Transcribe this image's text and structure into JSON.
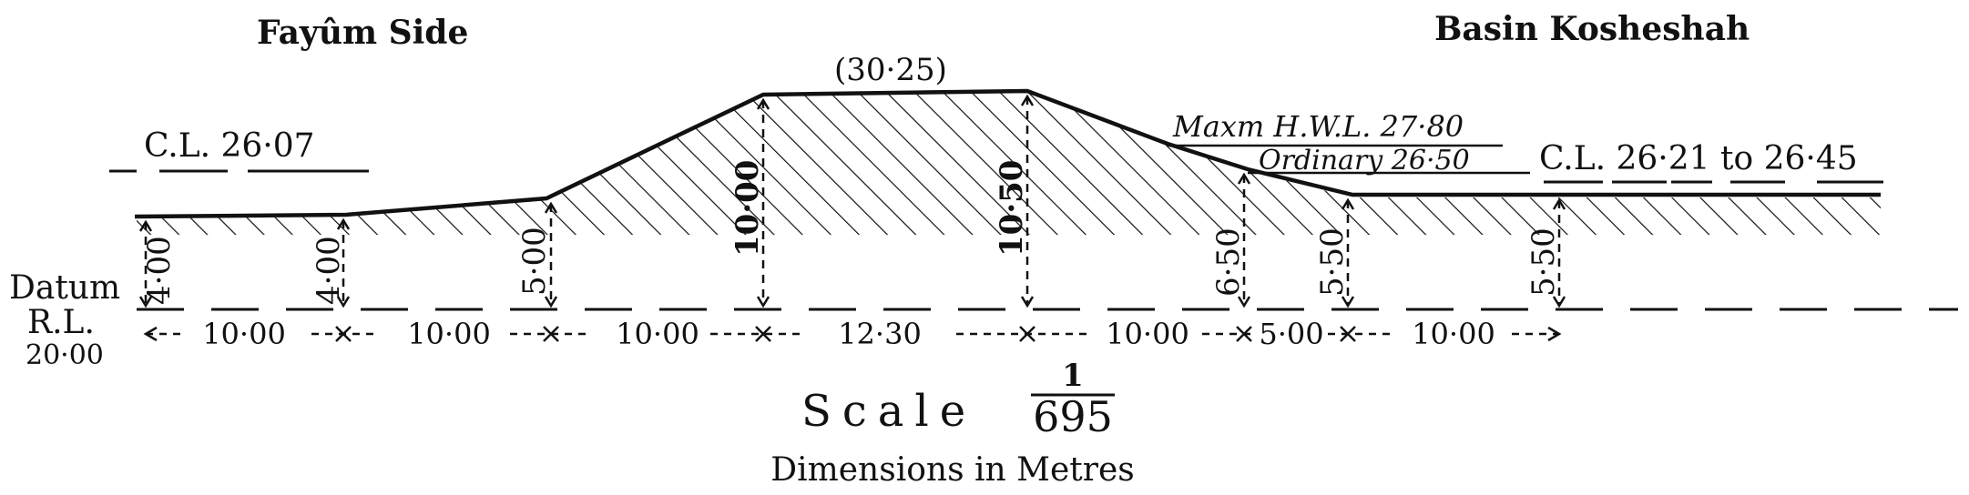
{
  "headings": {
    "left": "Fayûm Side",
    "right": "Basin Kosheshah"
  },
  "levels": {
    "crest": "(30·25)",
    "cl_left": "C.L. 26·07",
    "max_hwl": "Maxm H.W.L. 27·80",
    "ordinary": "Ordinary 26·50",
    "cl_right": "C.L. 26·21 to 26·45"
  },
  "datum": {
    "line1": "Datum",
    "line2": "R.L.",
    "line3": "20·00"
  },
  "heights": [
    "4·00",
    "4·00",
    "5·00",
    "10·00",
    "10·50",
    "6·50",
    "5·50",
    "5·50"
  ],
  "spans": [
    "10·00",
    "10·00",
    "10·00",
    "12·30",
    "10·00",
    "5·00",
    "10·00"
  ],
  "scale": {
    "label": "Scale",
    "numerator": "1",
    "denominator": "695"
  },
  "units_note": "Dimensions in Metres"
}
